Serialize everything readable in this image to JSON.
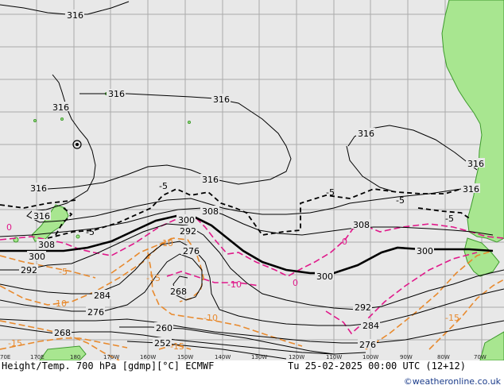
{
  "map": {
    "title_left": "Height/Temp. 700 hPa [gdmp][°C] ECMWF",
    "title_right": "Tu 25-02-2025 00:00 UTC (12+12)",
    "credit": "©weatheronline.co.uk",
    "colors": {
      "ocean": "#e8e8e8",
      "land": "#a8e690",
      "land_edge": "#3d9a2c",
      "grid": "#aaaaaa",
      "height_contour": "#000000",
      "temp_minus5": "#000000",
      "temp_0": "#e0198a",
      "temp_neg": "#e88a2e",
      "temp_below_minus15": "#e88a2e"
    },
    "lon_labels": [
      "70E",
      "170E",
      "180",
      "170W",
      "160W",
      "150W",
      "140W",
      "130W",
      "120W",
      "110W",
      "100W",
      "90W",
      "80W",
      "70W"
    ],
    "height_labels": [
      "316",
      "316",
      "316",
      "316",
      "316",
      "316",
      "316",
      "316",
      "316",
      "316",
      "308",
      "308",
      "308",
      "300",
      "300",
      "300",
      "300",
      "292",
      "292",
      "292",
      "284",
      "284",
      "276",
      "276",
      "276",
      "268",
      "268",
      "260",
      "252"
    ],
    "temp_labels": [
      "-5",
      "-5",
      "-5",
      "-5",
      "-5",
      "0",
      "0",
      "-5",
      "-10",
      "-10",
      "-15",
      "-10",
      "-15",
      "-15",
      "-15",
      "-10",
      "0"
    ]
  }
}
